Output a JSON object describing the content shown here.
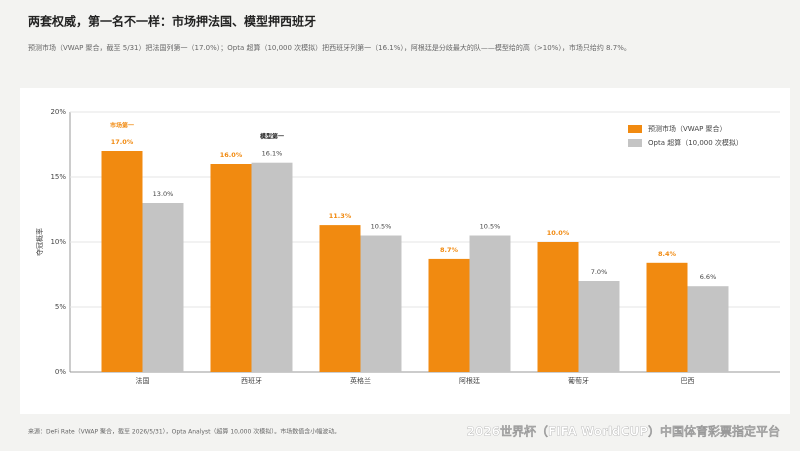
{
  "chart_data": {
    "type": "bar",
    "title": "两套权威，第一名不一样：市场押法国、模型押西班牙",
    "subtitle": "预测市场（VWAP 聚合，截至 5/31）把法国列第一（17.0%）；Opta 超算（10,000 次模拟）把西班牙列第一（16.1%），阿根廷是分歧最大的队——模型给的高（>10%），市场只给约 8.7%。",
    "y_label": "夺冠概率",
    "annotations": [
      "市场第一",
      "模型第一"
    ],
    "source": "来源：DeFi Rate（VWAP 聚合，截至 2026/5/31），Opta Analyst（超算 10,000 次模拟）。市场数值含小幅波动。",
    "watermark": "2026世界杯（FIFA WorldCUP）中国体育彩票指定平台",
    "categories": [
      "法国",
      "西班牙",
      "英格兰",
      "阿根廷",
      "葡萄牙",
      "巴西"
    ],
    "series": [
      {
        "name": "预测市场（VWAP 聚合）",
        "color": "#f18a10",
        "values": [
          17.0,
          16.0,
          11.3,
          8.7,
          10.0,
          8.4
        ],
        "value_labels": [
          "17.0%",
          "16.0%",
          "11.3%",
          "8.7%",
          "10.0%",
          "8.4%"
        ]
      },
      {
        "name": "Opta 超算（10,000 次模拟）",
        "color": "#c4c4c4",
        "values": [
          13.0,
          16.1,
          10.5,
          10.5,
          7.0,
          6.6
        ],
        "value_labels": [
          "13.0%",
          "16.1%",
          "10.5%",
          "10.5%",
          "7.0%",
          "6.6%"
        ]
      }
    ],
    "ylim": [
      0,
      20
    ],
    "yticks": [
      {
        "value": 0,
        "label": "0%"
      },
      {
        "value": 5,
        "label": "5%"
      },
      {
        "value": 10,
        "label": "10%"
      },
      {
        "value": 15,
        "label": "15%"
      },
      {
        "value": 20,
        "label": "20%"
      }
    ],
    "grid": true
  }
}
